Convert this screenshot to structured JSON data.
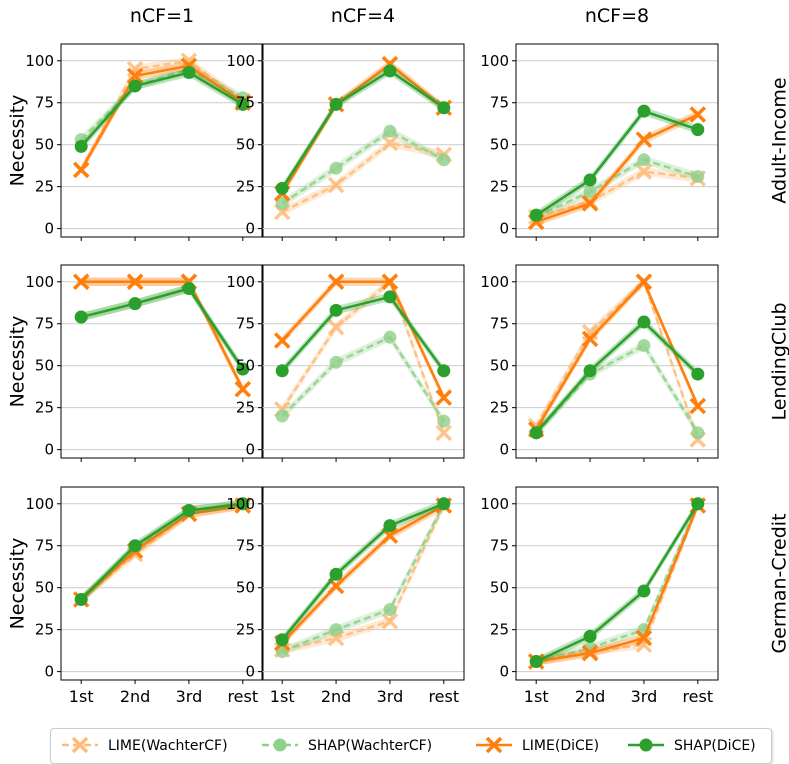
{
  "colors": {
    "lime_wachter": "#ffbb78",
    "shap_wachter": "#8fd08a",
    "lime_dice": "#ff7f0e",
    "shap_dice": "#2ca02c",
    "grid": "#cccccc"
  },
  "chart_data": {
    "type": "line",
    "column_titles": [
      "nCF=1",
      "nCF=4",
      "nCF=8"
    ],
    "row_titles": [
      "Adult-Income",
      "LendingClub",
      "German-Credit"
    ],
    "ylabel": "Necessity",
    "categories": [
      "1st",
      "2nd",
      "3rd",
      "rest"
    ],
    "yticks": [
      0,
      25,
      50,
      75,
      100
    ],
    "ylim": [
      -5,
      110
    ],
    "grid": "horizontal",
    "legend": {
      "placement": "bottom-center"
    },
    "series_legend": [
      {
        "key": "lime_wachter",
        "name": "LIME(WachterCF)",
        "marker": "x",
        "style": "dashed",
        "color": "#ffbb78"
      },
      {
        "key": "shap_wachter",
        "name": "SHAP(WachterCF)",
        "marker": "o",
        "style": "dashed",
        "color": "#8fd08a"
      },
      {
        "key": "lime_dice",
        "name": "LIME(DiCE)",
        "marker": "x",
        "style": "solid",
        "color": "#ff7f0e"
      },
      {
        "key": "shap_dice",
        "name": "SHAP(DiCE)",
        "marker": "o",
        "style": "solid",
        "color": "#2ca02c"
      }
    ],
    "panels": [
      {
        "row": "Adult-Income",
        "col": "nCF=1",
        "series": {
          "lime_wachter": [
            35,
            95,
            100,
            76
          ],
          "shap_wachter": [
            53,
            85,
            95,
            78
          ],
          "lime_dice": [
            35,
            91,
            97,
            75
          ],
          "shap_dice": [
            49,
            85,
            93,
            74
          ]
        }
      },
      {
        "row": "Adult-Income",
        "col": "nCF=4",
        "series": {
          "lime_wachter": [
            10,
            26,
            51,
            44
          ],
          "shap_wachter": [
            15,
            36,
            58,
            41
          ],
          "lime_dice": [
            21,
            74,
            98,
            72
          ],
          "shap_dice": [
            24,
            74,
            94,
            72
          ]
        }
      },
      {
        "row": "Adult-Income",
        "col": "nCF=8",
        "series": {
          "lime_wachter": [
            7,
            16,
            34,
            30
          ],
          "shap_wachter": [
            7,
            22,
            41,
            31
          ],
          "lime_dice": [
            4,
            15,
            53,
            68
          ],
          "shap_dice": [
            8,
            29,
            70,
            59
          ]
        }
      },
      {
        "row": "LendingClub",
        "col": "nCF=1",
        "series": {
          "lime_wachter": [
            100,
            100,
            100,
            36
          ],
          "shap_wachter": [
            79,
            87,
            96,
            48
          ],
          "lime_dice": [
            100,
            100,
            100,
            36
          ],
          "shap_dice": [
            79,
            87,
            96,
            48
          ]
        }
      },
      {
        "row": "LendingClub",
        "col": "nCF=4",
        "series": {
          "lime_wachter": [
            24,
            73,
            100,
            10
          ],
          "shap_wachter": [
            20,
            52,
            67,
            17
          ],
          "lime_dice": [
            65,
            100,
            100,
            31
          ],
          "shap_dice": [
            47,
            83,
            91,
            47
          ]
        }
      },
      {
        "row": "LendingClub",
        "col": "nCF=8",
        "series": {
          "lime_wachter": [
            14,
            70,
            100,
            6
          ],
          "shap_wachter": [
            10,
            45,
            62,
            10
          ],
          "lime_dice": [
            12,
            66,
            100,
            26
          ],
          "shap_dice": [
            10,
            47,
            76,
            45
          ]
        }
      },
      {
        "row": "German-Credit",
        "col": "nCF=1",
        "series": {
          "lime_wachter": [
            43,
            70,
            94,
            99
          ],
          "shap_wachter": [
            43,
            74,
            96,
            100
          ],
          "lime_dice": [
            43,
            72,
            94,
            99
          ],
          "shap_dice": [
            43,
            75,
            96,
            100
          ]
        }
      },
      {
        "row": "German-Credit",
        "col": "nCF=4",
        "series": {
          "lime_wachter": [
            13,
            20,
            30,
            99
          ],
          "shap_wachter": [
            12,
            25,
            37,
            100
          ],
          "lime_dice": [
            17,
            51,
            81,
            99
          ],
          "shap_dice": [
            19,
            58,
            87,
            100
          ]
        }
      },
      {
        "row": "German-Credit",
        "col": "nCF=8",
        "series": {
          "lime_wachter": [
            6,
            12,
            16,
            99
          ],
          "shap_wachter": [
            6,
            14,
            25,
            100
          ],
          "lime_dice": [
            6,
            11,
            20,
            99
          ],
          "shap_dice": [
            6,
            21,
            48,
            100
          ]
        }
      }
    ]
  }
}
